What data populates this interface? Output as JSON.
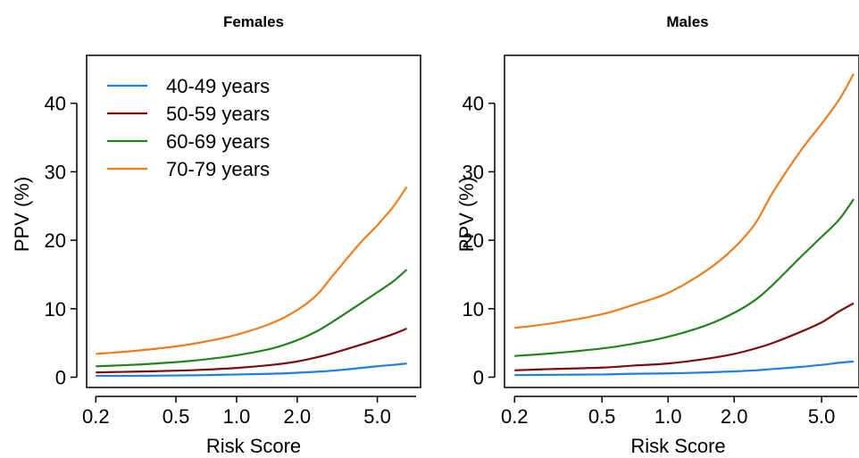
{
  "chart_data": [
    {
      "type": "line",
      "title": "Females",
      "xlabel": "Risk Score",
      "ylabel": "PPV (%)",
      "x_scale": "log",
      "x_ticks": [
        "0.2",
        "0.5",
        "1.0",
        "2.0",
        "5.0"
      ],
      "y_ticks": [
        "0",
        "10",
        "20",
        "30",
        "40"
      ],
      "xlim": [
        0.18,
        8.2
      ],
      "ylim": [
        -1.5,
        47
      ],
      "legend_position": "top-left",
      "x": [
        0.2,
        0.3,
        0.5,
        0.7,
        1.0,
        1.5,
        2.0,
        2.5,
        3.0,
        4.0,
        5.0,
        6.0,
        7.0
      ],
      "series": [
        {
          "name": "40-49 years",
          "color": "#1f7fe0",
          "values": [
            0.2,
            0.2,
            0.25,
            0.3,
            0.4,
            0.5,
            0.65,
            0.8,
            0.95,
            1.3,
            1.6,
            1.8,
            2.0
          ]
        },
        {
          "name": "50-59 years",
          "color": "#7b0d0d",
          "values": [
            0.7,
            0.8,
            0.95,
            1.1,
            1.35,
            1.8,
            2.3,
            2.9,
            3.5,
            4.6,
            5.5,
            6.3,
            7.1
          ]
        },
        {
          "name": "60-69 years",
          "color": "#23821f",
          "values": [
            1.6,
            1.8,
            2.2,
            2.6,
            3.2,
            4.2,
            5.4,
            6.7,
            8.1,
            10.5,
            12.4,
            14.0,
            15.7
          ]
        },
        {
          "name": "70-79 years",
          "color": "#f07c20",
          "values": [
            3.4,
            3.8,
            4.5,
            5.2,
            6.2,
            7.9,
            9.8,
            12.0,
            14.8,
            19.2,
            22.2,
            24.9,
            27.8
          ]
        }
      ]
    },
    {
      "type": "line",
      "title": "Males",
      "xlabel": "Risk Score",
      "ylabel": "PPV (%)",
      "x_scale": "log",
      "x_ticks": [
        "0.2",
        "0.5",
        "1.0",
        "2.0",
        "5.0"
      ],
      "y_ticks": [
        "0",
        "10",
        "20",
        "30",
        "40"
      ],
      "xlim": [
        0.18,
        7.4
      ],
      "ylim": [
        -1.5,
        47
      ],
      "x": [
        0.2,
        0.3,
        0.5,
        0.7,
        1.0,
        1.5,
        2.0,
        2.5,
        3.0,
        4.0,
        5.0,
        6.0,
        7.0
      ],
      "series": [
        {
          "name": "40-49 years",
          "color": "#1f7fe0",
          "values": [
            0.3,
            0.35,
            0.4,
            0.5,
            0.55,
            0.7,
            0.85,
            1.0,
            1.2,
            1.5,
            1.8,
            2.1,
            2.3
          ]
        },
        {
          "name": "50-59 years",
          "color": "#7b0d0d",
          "values": [
            1.0,
            1.2,
            1.4,
            1.7,
            2.0,
            2.7,
            3.4,
            4.2,
            5.0,
            6.6,
            8.0,
            9.6,
            10.8
          ]
        },
        {
          "name": "60-69 years",
          "color": "#23821f",
          "values": [
            3.1,
            3.5,
            4.2,
            4.9,
            5.9,
            7.6,
            9.4,
            11.3,
            13.5,
            17.5,
            20.5,
            23.0,
            26.0
          ]
        },
        {
          "name": "70-79 years",
          "color": "#f07c20",
          "values": [
            7.2,
            7.9,
            9.2,
            10.6,
            12.3,
            15.6,
            18.9,
            22.5,
            27.0,
            33.0,
            37.0,
            40.5,
            44.3
          ]
        }
      ]
    }
  ]
}
